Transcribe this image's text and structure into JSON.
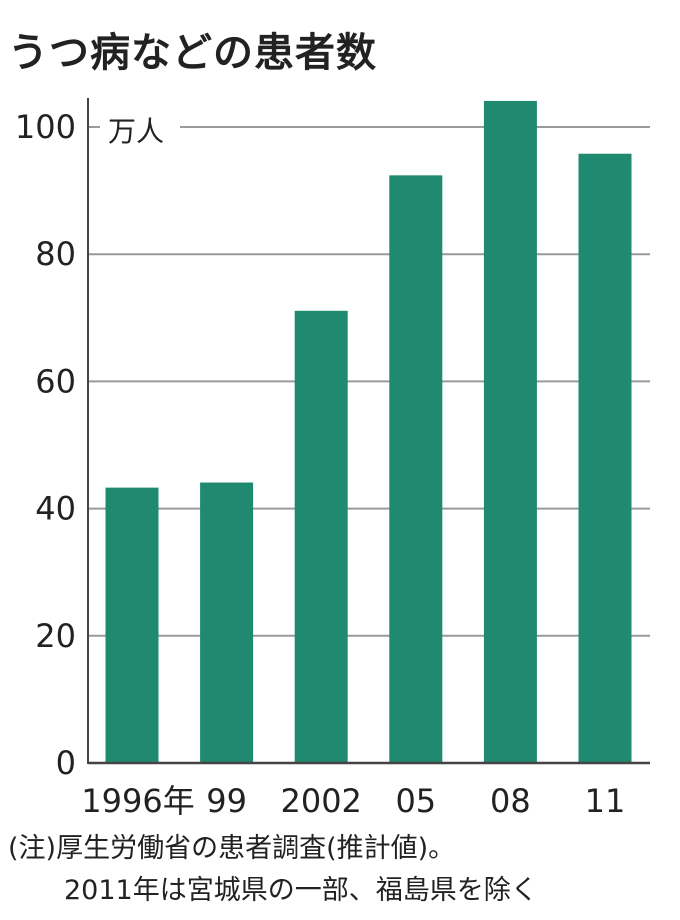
{
  "chart_data": {
    "type": "bar",
    "title": "うつ病などの患者数",
    "unit_label": "万人",
    "categories": [
      "1996年",
      "99",
      "2002",
      "05",
      "08",
      "11"
    ],
    "values": [
      43.3,
      44.1,
      71.1,
      92.4,
      104.1,
      95.8
    ],
    "yticks": [
      "0",
      "20",
      "40",
      "60",
      "80",
      "100"
    ],
    "ylim": [
      0,
      105
    ],
    "grid": true,
    "bar_color": "#1f8a70"
  },
  "notes": {
    "line1": "(注)厚生労働省の患者調査(推計値)。",
    "line2": "2011年は宮城県の一部、福島県を除く"
  }
}
